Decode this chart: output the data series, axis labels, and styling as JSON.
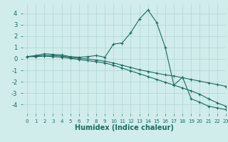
{
  "x": [
    0,
    1,
    2,
    3,
    4,
    5,
    6,
    7,
    8,
    9,
    10,
    11,
    12,
    13,
    14,
    15,
    16,
    17,
    18,
    19,
    20,
    21,
    22,
    23
  ],
  "line1": [
    0.2,
    0.3,
    0.45,
    0.4,
    0.35,
    0.2,
    0.15,
    0.2,
    0.3,
    0.15,
    1.3,
    1.4,
    2.3,
    3.5,
    4.3,
    3.2,
    1.0,
    -2.3,
    -1.6,
    -3.5,
    -3.8,
    -4.15,
    -4.3,
    -4.45
  ],
  "line2": [
    0.2,
    0.25,
    0.3,
    0.3,
    0.25,
    0.15,
    0.05,
    0.0,
    -0.1,
    -0.2,
    -0.35,
    -0.55,
    -0.75,
    -0.95,
    -1.1,
    -1.25,
    -1.4,
    -1.5,
    -1.65,
    -1.8,
    -1.95,
    -2.1,
    -2.25,
    -2.4
  ],
  "line3": [
    0.2,
    0.2,
    0.25,
    0.2,
    0.15,
    0.05,
    -0.05,
    -0.15,
    -0.25,
    -0.35,
    -0.55,
    -0.8,
    -1.05,
    -1.3,
    -1.55,
    -1.8,
    -2.05,
    -2.3,
    -2.55,
    -2.8,
    -3.1,
    -3.5,
    -3.85,
    -4.15
  ],
  "line_color": "#1a6b5e",
  "bg_color": "#d0eceb",
  "grid_color": "#aed6d4",
  "xlabel": "Humidex (Indice chaleur)",
  "xlabel_fontsize": 7,
  "ylim": [
    -4.8,
    4.8
  ],
  "xlim": [
    -0.5,
    23
  ],
  "yticks": [
    -4,
    -3,
    -2,
    -1,
    0,
    1,
    2,
    3,
    4
  ],
  "xticks": [
    0,
    1,
    2,
    3,
    4,
    5,
    6,
    7,
    8,
    9,
    10,
    11,
    12,
    13,
    14,
    15,
    16,
    17,
    18,
    19,
    20,
    21,
    22,
    23
  ]
}
